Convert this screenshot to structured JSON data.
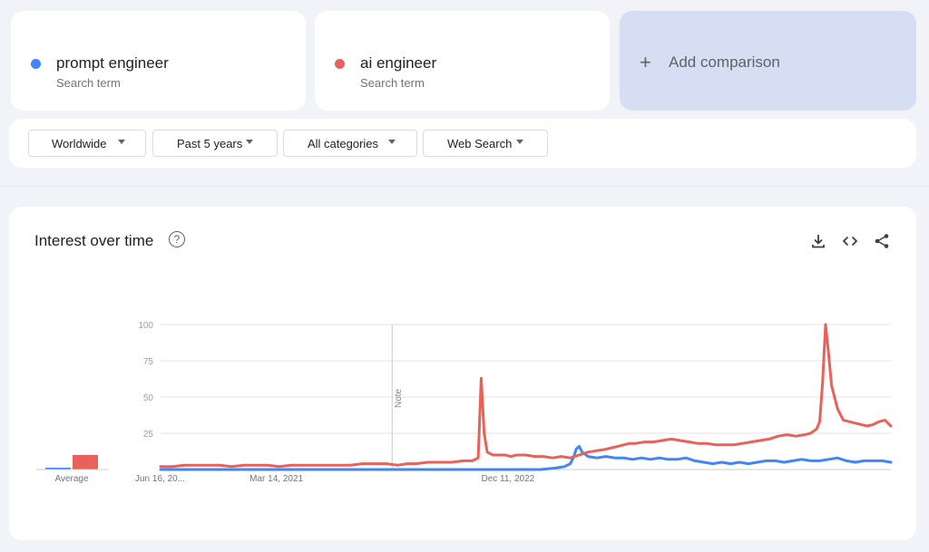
{
  "terms": [
    {
      "name": "prompt engineer",
      "subtitle": "Search term",
      "color": "#4285f4"
    },
    {
      "name": "ai engineer",
      "subtitle": "Search term",
      "color": "#e8625a"
    }
  ],
  "add_comparison": {
    "icon": "plus-icon",
    "label": "Add comparison"
  },
  "filters": [
    {
      "label": "Worldwide"
    },
    {
      "label": "Past 5 years"
    },
    {
      "label": "All categories"
    },
    {
      "label": "Web Search"
    }
  ],
  "chart_card": {
    "title": "Interest over time",
    "help_icon": "?",
    "tools": [
      "download-icon",
      "embed-icon",
      "share-icon"
    ]
  },
  "chart_data": {
    "type": "line",
    "ylim": [
      0,
      100
    ],
    "y_ticks": [
      25,
      50,
      75,
      100
    ],
    "x_ticks": [
      {
        "label": "Jun 16, 20...",
        "x": 0
      },
      {
        "label": "Mar 14, 2021",
        "x": 39
      },
      {
        "label": "Dec 11, 2022",
        "x": 117
      }
    ],
    "note": {
      "label": "Note",
      "x": 78
    },
    "grid": true,
    "average_label": "Average",
    "series": [
      {
        "name": "prompt engineer",
        "color": "#4285f4",
        "average": 1,
        "points": [
          [
            0,
            0
          ],
          [
            100,
            0
          ],
          [
            128,
            0
          ],
          [
            133,
            1
          ],
          [
            136,
            2
          ],
          [
            138,
            4
          ],
          [
            139,
            8
          ],
          [
            140,
            14
          ],
          [
            141,
            16
          ],
          [
            142,
            12
          ],
          [
            144,
            9
          ],
          [
            147,
            8
          ],
          [
            150,
            9
          ],
          [
            153,
            8
          ],
          [
            156,
            8
          ],
          [
            159,
            7
          ],
          [
            162,
            8
          ],
          [
            165,
            7
          ],
          [
            168,
            8
          ],
          [
            171,
            7
          ],
          [
            174,
            7
          ],
          [
            177,
            8
          ],
          [
            180,
            6
          ],
          [
            183,
            5
          ],
          [
            186,
            4
          ],
          [
            189,
            5
          ],
          [
            192,
            4
          ],
          [
            195,
            5
          ],
          [
            198,
            4
          ],
          [
            201,
            5
          ],
          [
            204,
            6
          ],
          [
            207,
            6
          ],
          [
            210,
            5
          ],
          [
            213,
            6
          ],
          [
            216,
            7
          ],
          [
            219,
            6
          ],
          [
            222,
            6
          ],
          [
            225,
            7
          ],
          [
            228,
            8
          ],
          [
            231,
            6
          ],
          [
            234,
            5
          ],
          [
            237,
            6
          ],
          [
            240,
            6
          ],
          [
            243,
            6
          ],
          [
            246,
            5
          ]
        ]
      },
      {
        "name": "ai engineer",
        "color": "#e8625a",
        "average": 10,
        "points": [
          [
            0,
            2
          ],
          [
            4,
            2
          ],
          [
            8,
            3
          ],
          [
            12,
            3
          ],
          [
            16,
            3
          ],
          [
            20,
            3
          ],
          [
            24,
            2
          ],
          [
            28,
            3
          ],
          [
            32,
            3
          ],
          [
            36,
            3
          ],
          [
            40,
            2
          ],
          [
            44,
            3
          ],
          [
            48,
            3
          ],
          [
            52,
            3
          ],
          [
            56,
            3
          ],
          [
            60,
            3
          ],
          [
            64,
            3
          ],
          [
            68,
            4
          ],
          [
            72,
            4
          ],
          [
            76,
            4
          ],
          [
            80,
            3
          ],
          [
            83,
            4
          ],
          [
            86,
            4
          ],
          [
            90,
            5
          ],
          [
            94,
            5
          ],
          [
            98,
            5
          ],
          [
            102,
            6
          ],
          [
            105,
            6
          ],
          [
            107,
            8
          ],
          [
            108,
            63
          ],
          [
            109,
            25
          ],
          [
            110,
            12
          ],
          [
            112,
            10
          ],
          [
            114,
            10
          ],
          [
            116,
            10
          ],
          [
            118,
            9
          ],
          [
            120,
            10
          ],
          [
            123,
            10
          ],
          [
            126,
            9
          ],
          [
            129,
            9
          ],
          [
            132,
            8
          ],
          [
            135,
            9
          ],
          [
            138,
            8
          ],
          [
            141,
            10
          ],
          [
            144,
            12
          ],
          [
            147,
            13
          ],
          [
            150,
            14
          ],
          [
            152,
            15
          ],
          [
            154,
            16
          ],
          [
            156,
            17
          ],
          [
            158,
            18
          ],
          [
            160,
            18
          ],
          [
            163,
            19
          ],
          [
            166,
            19
          ],
          [
            169,
            20
          ],
          [
            172,
            21
          ],
          [
            175,
            20
          ],
          [
            178,
            19
          ],
          [
            181,
            18
          ],
          [
            184,
            18
          ],
          [
            187,
            17
          ],
          [
            190,
            17
          ],
          [
            193,
            17
          ],
          [
            196,
            18
          ],
          [
            199,
            19
          ],
          [
            202,
            20
          ],
          [
            205,
            21
          ],
          [
            208,
            23
          ],
          [
            211,
            24
          ],
          [
            214,
            23
          ],
          [
            217,
            24
          ],
          [
            219,
            25
          ],
          [
            221,
            28
          ],
          [
            222,
            33
          ],
          [
            223,
            60
          ],
          [
            224,
            100
          ],
          [
            225,
            80
          ],
          [
            226,
            58
          ],
          [
            228,
            42
          ],
          [
            230,
            34
          ],
          [
            232,
            33
          ],
          [
            234,
            32
          ],
          [
            236,
            31
          ],
          [
            238,
            30
          ],
          [
            240,
            31
          ],
          [
            242,
            33
          ],
          [
            244,
            34
          ],
          [
            246,
            30
          ]
        ]
      }
    ]
  }
}
